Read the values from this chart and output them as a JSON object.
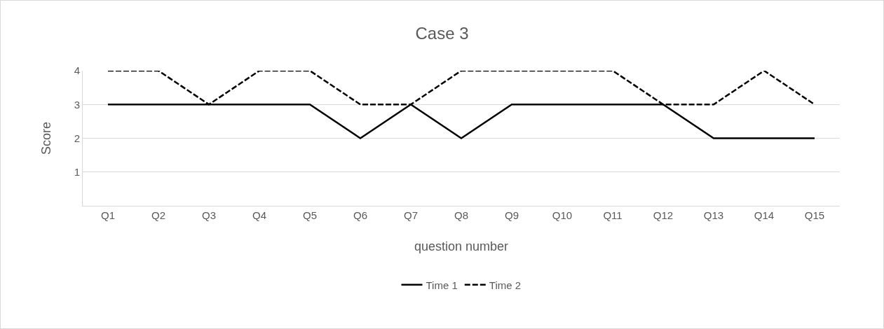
{
  "chart_data": {
    "type": "line",
    "title": "Case 3",
    "xlabel": "question number",
    "ylabel": "Score",
    "categories": [
      "Q1",
      "Q2",
      "Q3",
      "Q4",
      "Q5",
      "Q6",
      "Q7",
      "Q8",
      "Q9",
      "Q10",
      "Q11",
      "Q12",
      "Q13",
      "Q14",
      "Q15"
    ],
    "series": [
      {
        "name": "Time 1",
        "color": "#000000",
        "line_style": "solid",
        "values": [
          3,
          3,
          3,
          3,
          3,
          2,
          3,
          2,
          3,
          3,
          3,
          3,
          2,
          2,
          2
        ]
      },
      {
        "name": "Time 2",
        "color": "#000000",
        "line_style": "dashed",
        "values": [
          4,
          4,
          3,
          4,
          4,
          3,
          3,
          4,
          4,
          4,
          4,
          3,
          3,
          4,
          3
        ]
      }
    ],
    "ylim": [
      0,
      4
    ],
    "yticks": [
      {
        "value": 0,
        "label": null
      },
      1,
      2,
      3,
      4
    ],
    "grid": "y",
    "legend": "bottom",
    "marker": "none"
  }
}
